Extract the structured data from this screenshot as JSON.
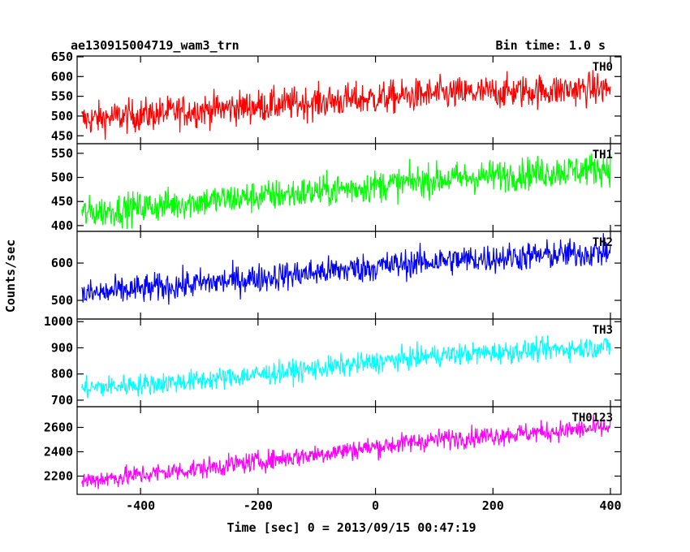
{
  "header": {
    "title": "ae130915004719_wam3_trn",
    "bin_time": "Bin time: 1.0 s"
  },
  "chart_data": {
    "type": "line",
    "title": "ae130915004719_wam3_trn",
    "subtitle": "Bin time: 1.0 s",
    "xlabel": "Time [sec] 0 = 2013/09/15 00:47:19",
    "ylabel": "Counts/sec",
    "xlim": [
      -508,
      418
    ],
    "x_range_data": [
      -500,
      400
    ],
    "xticks": [
      -400,
      -200,
      0,
      200,
      400
    ],
    "grid": false,
    "panels": [
      {
        "name": "TH0",
        "color": "#ff0000",
        "ylim": [
          430,
          652
        ],
        "yticks": [
          450,
          500,
          550,
          600,
          650
        ],
        "trend": [
          [
            -500,
            490
          ],
          [
            -300,
            515
          ],
          [
            -100,
            535
          ],
          [
            100,
            555
          ],
          [
            400,
            570
          ]
        ],
        "noise": 30
      },
      {
        "name": "TH1",
        "color": "#00ff00",
        "ylim": [
          388,
          570
        ],
        "yticks": [
          400,
          450,
          500,
          550
        ],
        "trend": [
          [
            -500,
            425
          ],
          [
            -300,
            450
          ],
          [
            -100,
            470
          ],
          [
            100,
            495
          ],
          [
            400,
            520
          ]
        ],
        "noise": 24
      },
      {
        "name": "TH2",
        "color": "#0000ff",
        "ylim": [
          450,
          685
        ],
        "yticks": [
          500,
          600
        ],
        "trend": [
          [
            -500,
            515
          ],
          [
            -300,
            545
          ],
          [
            -100,
            575
          ],
          [
            100,
            605
          ],
          [
            400,
            630
          ]
        ],
        "noise": 28
      },
      {
        "name": "TH3",
        "color": "#00ffff",
        "ylim": [
          675,
          1010
        ],
        "yticks": [
          700,
          800,
          900,
          1000
        ],
        "trend": [
          [
            -500,
            745
          ],
          [
            -300,
            775
          ],
          [
            -100,
            820
          ],
          [
            100,
            870
          ],
          [
            400,
            905
          ]
        ],
        "noise": 30
      },
      {
        "name": "TH0123",
        "color": "#ff00ff",
        "ylim": [
          2050,
          2770
        ],
        "yticks": [
          2200,
          2400,
          2600
        ],
        "trend": [
          [
            -500,
            2160
          ],
          [
            -300,
            2260
          ],
          [
            -100,
            2380
          ],
          [
            100,
            2500
          ],
          [
            400,
            2600
          ]
        ],
        "noise": 60
      }
    ]
  }
}
